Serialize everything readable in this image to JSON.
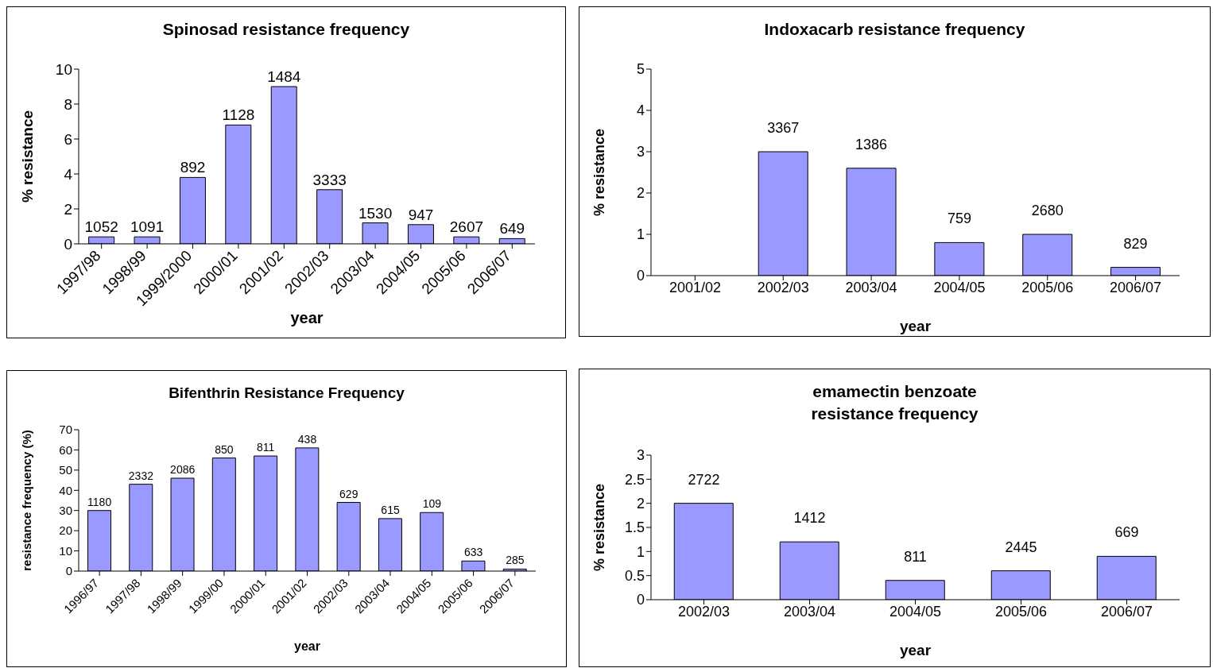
{
  "chart_data": [
    {
      "type": "bar",
      "title": "Spinosad resistance frequency",
      "xlabel": "year",
      "ylabel": "% resistance",
      "categories": [
        "1997/98",
        "1998/99",
        "1999/2000",
        "2000/01",
        "2001/02",
        "2002/03",
        "2003/04",
        "2004/05",
        "2005/06",
        "2006/07"
      ],
      "values": [
        0.4,
        0.4,
        3.8,
        6.8,
        9.0,
        3.1,
        1.2,
        1.1,
        0.4,
        0.3
      ],
      "color": "#9999ff",
      "ylim": [
        0,
        10
      ],
      "yticks": [
        0,
        2,
        4,
        6,
        8,
        10
      ],
      "legend": false,
      "annotations": [
        {
          "text": "1052",
          "x": "1997/98",
          "y": 0.4
        },
        {
          "text": "1091",
          "x": "1998/99",
          "y": 0.4
        },
        {
          "text": "892",
          "x": "1999/2000",
          "y": 3.8
        },
        {
          "text": "1128",
          "x": "2000/01",
          "y": 6.8
        },
        {
          "text": "1484",
          "x": "2001/02",
          "y": 9.0
        },
        {
          "text": "3333",
          "x": "2002/03",
          "y": 3.1
        },
        {
          "text": "1530",
          "x": "2003/04",
          "y": 1.2
        },
        {
          "text": "947",
          "x": "2004/05",
          "y": 1.1
        },
        {
          "text": "2607",
          "x": "2005/06",
          "y": 0.4
        },
        {
          "text": "649",
          "x": "2006/07",
          "y": 0.3
        }
      ]
    },
    {
      "type": "bar",
      "title": "Indoxacarb resistance frequency",
      "xlabel": "year",
      "ylabel": "% resistance",
      "categories": [
        "2001/02",
        "2002/03",
        "2003/04",
        "2004/05",
        "2005/06",
        "2006/07"
      ],
      "values": [
        null,
        3.0,
        2.6,
        0.8,
        1.0,
        0.2
      ],
      "color": "#9999ff",
      "ylim": [
        0,
        5
      ],
      "yticks": [
        0,
        1,
        2,
        3,
        4,
        5
      ],
      "legend": false,
      "annotations": [
        {
          "text": "3367",
          "x": "2002/03",
          "y": 3.0
        },
        {
          "text": "1386",
          "x": "2003/04",
          "y": 2.6
        },
        {
          "text": "759",
          "x": "2004/05",
          "y": 0.8
        },
        {
          "text": "2680",
          "x": "2005/06",
          "y": 1.0
        },
        {
          "text": "829",
          "x": "2006/07",
          "y": 0.2
        }
      ]
    },
    {
      "type": "bar",
      "title": "Bifenthrin Resistance Frequency",
      "xlabel": "year",
      "ylabel": "resistance frequency (%)",
      "categories": [
        "1996/97",
        "1997/98",
        "1998/99",
        "1999/00",
        "2000/01",
        "2001/02",
        "2002/03",
        "2003/04",
        "2004/05",
        "2005/06",
        "2006/07"
      ],
      "values": [
        30,
        43,
        46,
        56,
        57,
        61,
        34,
        26,
        29,
        5,
        1
      ],
      "color": "#9999ff",
      "ylim": [
        0,
        70
      ],
      "yticks": [
        0,
        10,
        20,
        30,
        40,
        50,
        60,
        70
      ],
      "legend": false,
      "annotations": [
        {
          "text": "1180",
          "x": "1996/97",
          "y": 30
        },
        {
          "text": "2332",
          "x": "1997/98",
          "y": 43
        },
        {
          "text": "2086",
          "x": "1998/99",
          "y": 46
        },
        {
          "text": "850",
          "x": "1999/00",
          "y": 56
        },
        {
          "text": "811",
          "x": "2000/01",
          "y": 57
        },
        {
          "text": "438",
          "x": "2001/02",
          "y": 61
        },
        {
          "text": "629",
          "x": "2002/03",
          "y": 34
        },
        {
          "text": "615",
          "x": "2003/04",
          "y": 26
        },
        {
          "text": "109",
          "x": "2004/05",
          "y": 29
        },
        {
          "text": "633",
          "x": "2005/06",
          "y": 5
        },
        {
          "text": "285",
          "x": "2006/07",
          "y": 1
        }
      ]
    },
    {
      "type": "bar",
      "title": "emamectin benzoate\nresistance frequency",
      "xlabel": "year",
      "ylabel": "% resistance",
      "categories": [
        "2002/03",
        "2003/04",
        "2004/05",
        "2005/06",
        "2006/07"
      ],
      "values": [
        2.0,
        1.2,
        0.4,
        0.6,
        0.9
      ],
      "color": "#9999ff",
      "ylim": [
        0,
        3
      ],
      "yticks": [
        0,
        0.5,
        1,
        1.5,
        2,
        2.5,
        3
      ],
      "legend": false,
      "annotations": [
        {
          "text": "2722",
          "x": "2002/03",
          "y": 2.0
        },
        {
          "text": "1412",
          "x": "2003/04",
          "y": 1.2
        },
        {
          "text": "811",
          "x": "2004/05",
          "y": 0.4
        },
        {
          "text": "2445",
          "x": "2005/06",
          "y": 0.6
        },
        {
          "text": "669",
          "x": "2006/07",
          "y": 0.9
        }
      ]
    }
  ]
}
